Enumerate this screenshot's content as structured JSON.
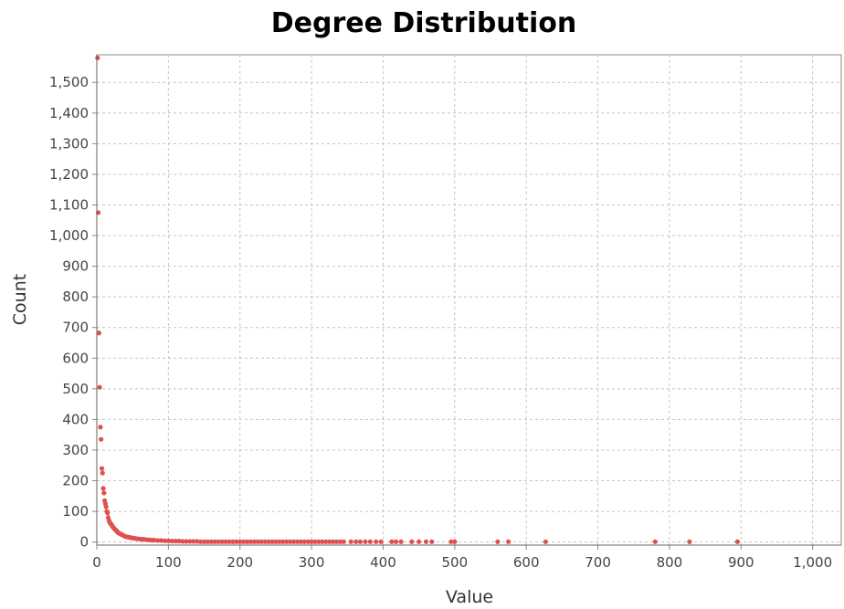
{
  "chart_data": {
    "type": "scatter",
    "title": "Degree Distribution",
    "xlabel": "Value",
    "ylabel": "Count",
    "xlim": [
      0,
      1040
    ],
    "ylim": [
      -10,
      1590
    ],
    "grid": true,
    "legend": "none",
    "marker_color": "#e05050",
    "x_ticks": [
      0,
      100,
      200,
      300,
      400,
      500,
      600,
      700,
      800,
      900,
      1000
    ],
    "x_tick_labels": [
      "0",
      "100",
      "200",
      "300",
      "400",
      "500",
      "600",
      "700",
      "800",
      "900",
      "1,000"
    ],
    "y_ticks": [
      0,
      100,
      200,
      300,
      400,
      500,
      600,
      700,
      800,
      900,
      1000,
      1100,
      1200,
      1300,
      1400,
      1500
    ],
    "y_tick_labels": [
      "0",
      "100",
      "200",
      "300",
      "400",
      "500",
      "600",
      "700",
      "800",
      "900",
      "1,000",
      "1,100",
      "1,200",
      "1,300",
      "1,400",
      "1,500"
    ],
    "points": [
      {
        "x": 1,
        "y": 1580
      },
      {
        "x": 2,
        "y": 1075
      },
      {
        "x": 3,
        "y": 682
      },
      {
        "x": 4,
        "y": 505
      },
      {
        "x": 5,
        "y": 375
      },
      {
        "x": 6,
        "y": 335
      },
      {
        "x": 7,
        "y": 240
      },
      {
        "x": 8,
        "y": 225
      },
      {
        "x": 9,
        "y": 175
      },
      {
        "x": 10,
        "y": 160
      },
      {
        "x": 11,
        "y": 135
      },
      {
        "x": 12,
        "y": 125
      },
      {
        "x": 13,
        "y": 115
      },
      {
        "x": 14,
        "y": 100
      },
      {
        "x": 15,
        "y": 95
      },
      {
        "x": 16,
        "y": 80
      },
      {
        "x": 17,
        "y": 70
      },
      {
        "x": 18,
        "y": 65
      },
      {
        "x": 19,
        "y": 60
      },
      {
        "x": 20,
        "y": 58
      },
      {
        "x": 21,
        "y": 55
      },
      {
        "x": 22,
        "y": 50
      },
      {
        "x": 23,
        "y": 48
      },
      {
        "x": 24,
        "y": 45
      },
      {
        "x": 25,
        "y": 42
      },
      {
        "x": 26,
        "y": 40
      },
      {
        "x": 27,
        "y": 38
      },
      {
        "x": 28,
        "y": 35
      },
      {
        "x": 29,
        "y": 33
      },
      {
        "x": 30,
        "y": 30
      },
      {
        "x": 32,
        "y": 28
      },
      {
        "x": 34,
        "y": 25
      },
      {
        "x": 36,
        "y": 23
      },
      {
        "x": 38,
        "y": 20
      },
      {
        "x": 40,
        "y": 18
      },
      {
        "x": 42,
        "y": 17
      },
      {
        "x": 44,
        "y": 16
      },
      {
        "x": 46,
        "y": 15
      },
      {
        "x": 48,
        "y": 14
      },
      {
        "x": 50,
        "y": 13
      },
      {
        "x": 53,
        "y": 12
      },
      {
        "x": 56,
        "y": 11
      },
      {
        "x": 59,
        "y": 10
      },
      {
        "x": 62,
        "y": 9
      },
      {
        "x": 65,
        "y": 9
      },
      {
        "x": 68,
        "y": 8
      },
      {
        "x": 71,
        "y": 7
      },
      {
        "x": 74,
        "y": 7
      },
      {
        "x": 77,
        "y": 6
      },
      {
        "x": 80,
        "y": 6
      },
      {
        "x": 85,
        "y": 5
      },
      {
        "x": 90,
        "y": 5
      },
      {
        "x": 95,
        "y": 4
      },
      {
        "x": 100,
        "y": 4
      },
      {
        "x": 105,
        "y": 3
      },
      {
        "x": 110,
        "y": 3
      },
      {
        "x": 115,
        "y": 3
      },
      {
        "x": 120,
        "y": 2
      },
      {
        "x": 125,
        "y": 2
      },
      {
        "x": 130,
        "y": 2
      },
      {
        "x": 135,
        "y": 2
      },
      {
        "x": 140,
        "y": 2
      },
      {
        "x": 145,
        "y": 1
      },
      {
        "x": 150,
        "y": 1
      },
      {
        "x": 155,
        "y": 1
      },
      {
        "x": 160,
        "y": 1
      },
      {
        "x": 165,
        "y": 1
      },
      {
        "x": 170,
        "y": 1
      },
      {
        "x": 175,
        "y": 1
      },
      {
        "x": 180,
        "y": 1
      },
      {
        "x": 185,
        "y": 1
      },
      {
        "x": 190,
        "y": 1
      },
      {
        "x": 195,
        "y": 1
      },
      {
        "x": 200,
        "y": 1
      },
      {
        "x": 205,
        "y": 1
      },
      {
        "x": 210,
        "y": 1
      },
      {
        "x": 215,
        "y": 1
      },
      {
        "x": 220,
        "y": 1
      },
      {
        "x": 225,
        "y": 1
      },
      {
        "x": 230,
        "y": 1
      },
      {
        "x": 235,
        "y": 1
      },
      {
        "x": 240,
        "y": 1
      },
      {
        "x": 245,
        "y": 1
      },
      {
        "x": 250,
        "y": 1
      },
      {
        "x": 255,
        "y": 1
      },
      {
        "x": 260,
        "y": 1
      },
      {
        "x": 265,
        "y": 1
      },
      {
        "x": 270,
        "y": 1
      },
      {
        "x": 275,
        "y": 1
      },
      {
        "x": 280,
        "y": 1
      },
      {
        "x": 285,
        "y": 1
      },
      {
        "x": 290,
        "y": 1
      },
      {
        "x": 295,
        "y": 1
      },
      {
        "x": 300,
        "y": 1
      },
      {
        "x": 305,
        "y": 1
      },
      {
        "x": 310,
        "y": 1
      },
      {
        "x": 315,
        "y": 1
      },
      {
        "x": 320,
        "y": 1
      },
      {
        "x": 325,
        "y": 1
      },
      {
        "x": 330,
        "y": 1
      },
      {
        "x": 335,
        "y": 1
      },
      {
        "x": 340,
        "y": 1
      },
      {
        "x": 345,
        "y": 1
      },
      {
        "x": 355,
        "y": 1
      },
      {
        "x": 362,
        "y": 1
      },
      {
        "x": 368,
        "y": 1
      },
      {
        "x": 375,
        "y": 1
      },
      {
        "x": 382,
        "y": 1
      },
      {
        "x": 390,
        "y": 1
      },
      {
        "x": 397,
        "y": 1
      },
      {
        "x": 412,
        "y": 1
      },
      {
        "x": 418,
        "y": 1
      },
      {
        "x": 425,
        "y": 1
      },
      {
        "x": 440,
        "y": 1
      },
      {
        "x": 450,
        "y": 1
      },
      {
        "x": 460,
        "y": 1
      },
      {
        "x": 468,
        "y": 1
      },
      {
        "x": 495,
        "y": 1
      },
      {
        "x": 500,
        "y": 1
      },
      {
        "x": 560,
        "y": 1
      },
      {
        "x": 575,
        "y": 1
      },
      {
        "x": 627,
        "y": 1
      },
      {
        "x": 780,
        "y": 1
      },
      {
        "x": 828,
        "y": 1
      },
      {
        "x": 895,
        "y": 1
      }
    ]
  }
}
